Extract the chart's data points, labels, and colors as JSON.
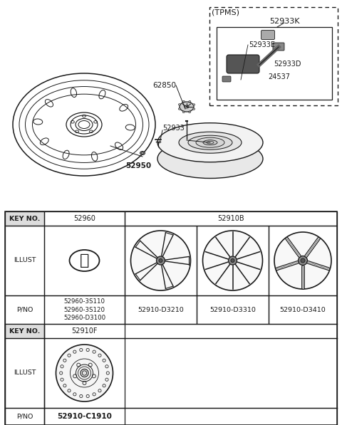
{
  "bg_color": "#ffffff",
  "line_color": "#1a1a1a",
  "gray_fill": "#c8c8c8",
  "mid_gray": "#999999",
  "tpms_box_label": "(TPMS)",
  "tpms_part_no": "52933K",
  "label_52933E": "52933E",
  "label_52933D": "52933D",
  "label_24537": "24537",
  "label_52933": "52933",
  "label_52950": "52950",
  "label_62850": "62850",
  "key1": "52960",
  "key2": "52910B",
  "key3": "52910F",
  "pno_52960": "52960-3S110\n52960-3S120\n52960-D3100",
  "pno_d3210": "52910-D3210",
  "pno_d3310": "52910-D3310",
  "pno_d3410": "52910-D3410",
  "pno_c1910": "52910-C1910",
  "row_label_keyno": "KEY NO.",
  "row_label_illust": "ILLUST",
  "row_label_pno": "P/NO"
}
